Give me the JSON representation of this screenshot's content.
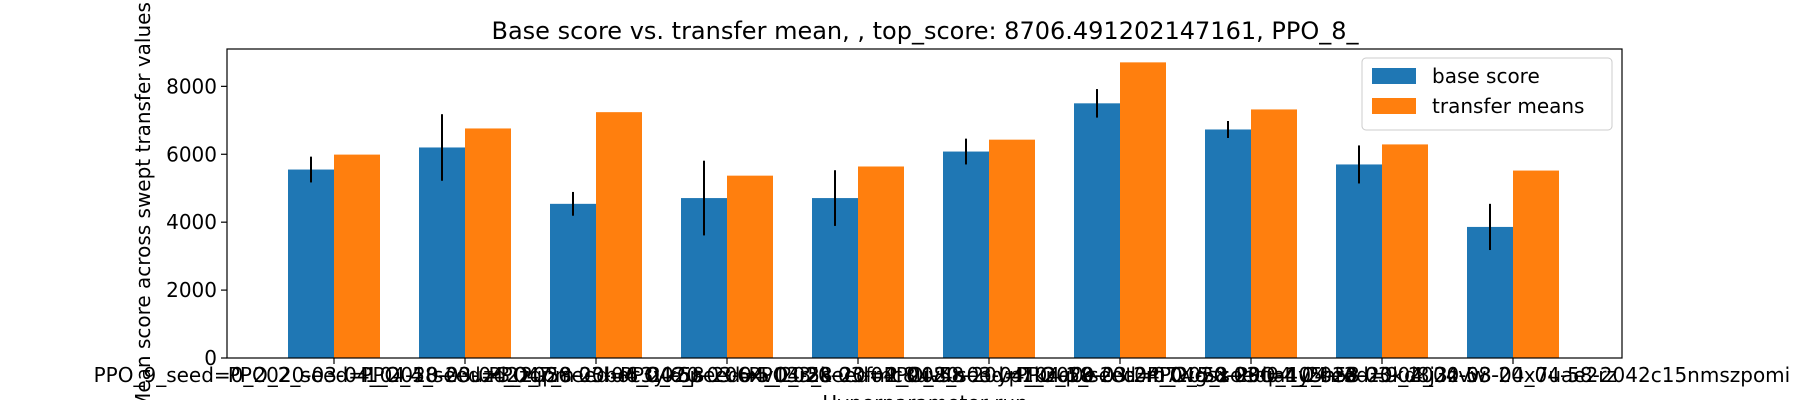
{
  "chart_data": {
    "type": "bar",
    "title": "Base score vs. transfer mean, , top_score: 8706.491202147161, PPO_8_",
    "xlabel": "Hyperparameter run",
    "ylabel": "Mean score across swept transfer values",
    "ylim": [
      0,
      9100
    ],
    "yticks": [
      0,
      2000,
      4000,
      6000,
      8000
    ],
    "grid": false,
    "legend_position": "top-right",
    "categories": [
      "PPO_9_seed=0_2020-03-04_04-58-20uzd2zqpm",
      "PPO_2_seed=1_2020-03-04_04-58-20boc3yk6p",
      "PPO_4_seed=3_2020-03-04_04-58-206xv13r2k",
      "PPO_7_seed=6_2020-03-04_04-58-20fmc8uv4n",
      "PPO_6_seed=5_2020-03-04_04-58-20yp1knq0e",
      "PPO_3_seed=2_2020-03-04_04-58-20t2m7wgsx",
      "PPO_8_seed=7_2020-03-04_04-58-20qa4y5hr3",
      "PPO_1_seed=0_2020-03-04_04-58-20kd8j3zvw",
      "PPO_5_seed=4_2020-03-04_04-58-20x7uae2rz",
      "PPO_10_seed=9_2020-03-04_04-58-2042c15nmszpomi"
    ],
    "series": [
      {
        "name": "base score",
        "color": "#1f77b4",
        "values": [
          5550,
          6200,
          4540,
          4710,
          4710,
          6080,
          7500,
          6730,
          5700,
          3860
        ],
        "errors": [
          380,
          980,
          350,
          1100,
          820,
          380,
          420,
          250,
          560,
          680
        ]
      },
      {
        "name": "transfer means",
        "color": "#ff7f0e",
        "values": [
          5990,
          6760,
          7240,
          5370,
          5640,
          6430,
          8706.49,
          7320,
          6290,
          5520
        ]
      }
    ]
  }
}
